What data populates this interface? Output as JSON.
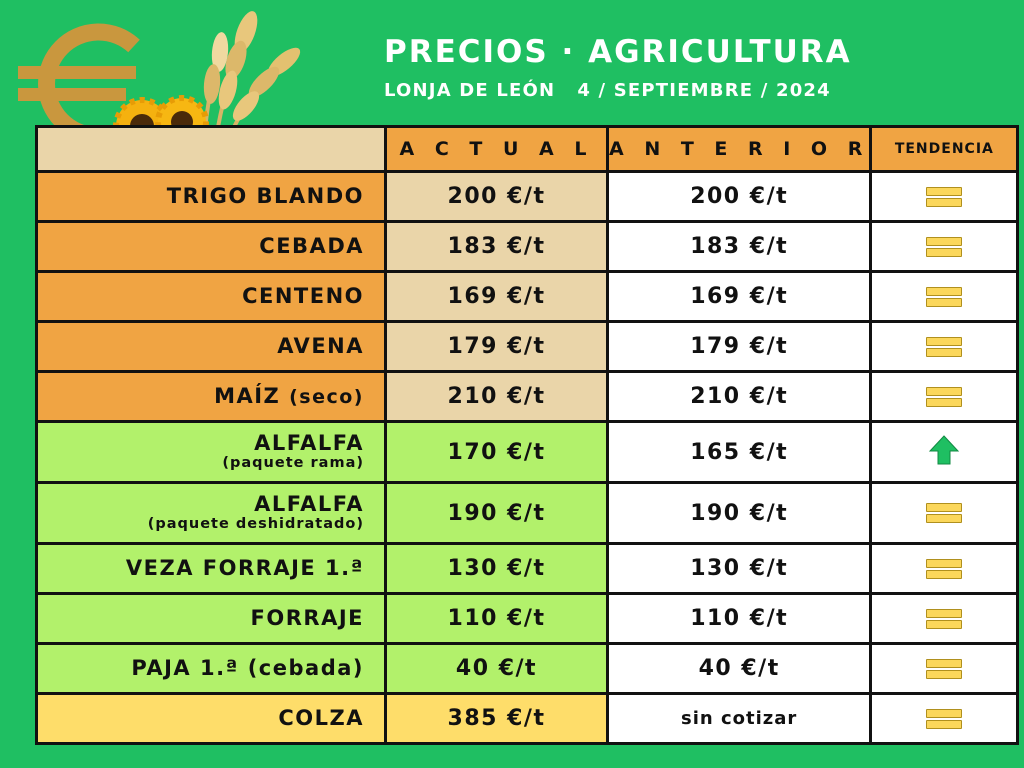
{
  "header": {
    "title": "PRECIOS · AGRICULTURA",
    "market": "LONJA DE LEÓN",
    "date": "4 / SEPTIEMBRE / 2024"
  },
  "table": {
    "columns": [
      "",
      "A C T U A L",
      "A N T E R I O R",
      "TENDENCIA"
    ],
    "rows": [
      {
        "product": "TRIGO BLANDO",
        "actual": "200 €/t",
        "anterior": "200 €/t",
        "trend": "equal-icon"
      },
      {
        "product": "CEBADA",
        "actual": "183 €/t",
        "anterior": "183 €/t",
        "trend": "equal-icon"
      },
      {
        "product": "CENTENO",
        "actual": "169 €/t",
        "anterior": "169 €/t",
        "trend": "equal-icon"
      },
      {
        "product": "AVENA",
        "actual": "179 €/t",
        "anterior": "179 €/t",
        "trend": "equal-icon"
      },
      {
        "product": "MAÍZ",
        "detail": "(seco)",
        "actual": "210 €/t",
        "anterior": "210 €/t",
        "trend": "equal-icon"
      },
      {
        "product": "ALFALFA",
        "detail": "(paquete rama)",
        "actual": "170 €/t",
        "anterior": "165 €/t",
        "trend": "arrow-up-icon"
      },
      {
        "product": "ALFALFA",
        "detail": "(paquete deshidratado)",
        "actual": "190 €/t",
        "anterior": "190 €/t",
        "trend": "equal-icon"
      },
      {
        "product": "VEZA FORRAJE 1.ª",
        "actual": "130 €/t",
        "anterior": "130 €/t",
        "trend": "equal-icon"
      },
      {
        "product": "FORRAJE",
        "actual": "110 €/t",
        "anterior": "110 €/t",
        "trend": "equal-icon"
      },
      {
        "product": "PAJA 1.ª (cebada)",
        "actual": "40 €/t",
        "anterior": "40 €/t",
        "trend": "equal-icon"
      },
      {
        "product": "COLZA",
        "actual": "385 €/t",
        "anterior": "sin cotizar",
        "trend": "equal-icon"
      }
    ]
  },
  "colors": {
    "background": "#1fbf62",
    "header_orange": "#f0a443",
    "beige": "#ead5a9",
    "light_green": "#b2f16b",
    "yellow": "#fedd6a",
    "trend_equal": "#fbd75b",
    "trend_up": "#1fbf62"
  },
  "logo": {
    "icon": "euro-sign-icon",
    "decoration": [
      "sunflower-icon",
      "wheat-ears-icon"
    ]
  }
}
